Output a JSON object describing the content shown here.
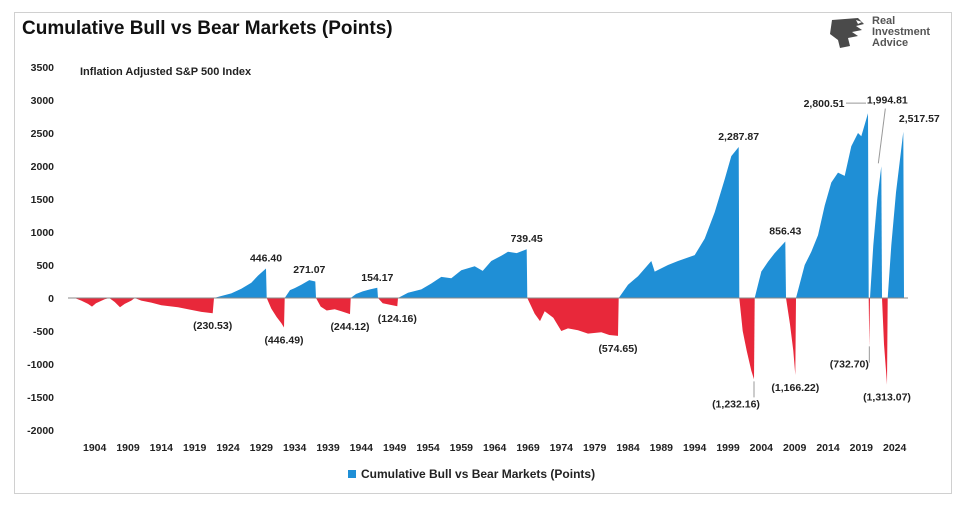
{
  "logo": {
    "line1": "Real",
    "line2": "Investment",
    "line3": "Advice",
    "icon": "eagle-head-icon"
  },
  "colors": {
    "positive": "#1f8fd6",
    "negative": "#e8283a",
    "axis": "#888888"
  },
  "chart_data": {
    "type": "area",
    "title": "Cumulative Bull vs Bear Markets (Points)",
    "subtitle": "Inflation Adjusted S&P 500 Index",
    "xlabel": "",
    "ylabel": "",
    "xlim": [
      1900,
      2026
    ],
    "ylim": [
      -2000,
      3500
    ],
    "yticks": [
      3500,
      3000,
      2500,
      2000,
      1500,
      1000,
      500,
      0,
      -500,
      -1000,
      -1500,
      -2000
    ],
    "ytick_labels": [
      "3500",
      "3000",
      "2500",
      "2000",
      "1500",
      "1000",
      "500",
      "0",
      "-500",
      "-1000",
      "-1500",
      "-2000"
    ],
    "xticks": [
      1904,
      1909,
      1914,
      1919,
      1924,
      1929,
      1934,
      1939,
      1944,
      1949,
      1954,
      1959,
      1964,
      1969,
      1974,
      1979,
      1984,
      1989,
      1994,
      1999,
      2004,
      2009,
      2014,
      2019,
      2024
    ],
    "legend": {
      "position": "bottom",
      "label": "Cumulative Bull vs Bear Markets (Points)"
    },
    "grid": false,
    "segments": [
      {
        "kind": "bear",
        "points": [
          [
            1901.0,
            0
          ],
          [
            1902.0,
            -40
          ],
          [
            1903.0,
            -90
          ],
          [
            1903.6,
            -130
          ],
          [
            1904.2,
            -80
          ],
          [
            1905.5,
            -20
          ],
          [
            1906.2,
            0
          ]
        ]
      },
      {
        "kind": "bear",
        "points": [
          [
            1906.2,
            0
          ],
          [
            1907.0,
            -60
          ],
          [
            1907.8,
            -140
          ],
          [
            1908.5,
            -90
          ],
          [
            1909.5,
            -40
          ],
          [
            1910.0,
            0
          ]
        ]
      },
      {
        "kind": "bear",
        "points": [
          [
            1910.0,
            0
          ],
          [
            1911.0,
            -40
          ],
          [
            1912.5,
            -70
          ],
          [
            1914.0,
            -110
          ],
          [
            1916.5,
            -140
          ],
          [
            1918.0,
            -170
          ],
          [
            1920.0,
            -210
          ],
          [
            1921.7,
            -230.53
          ],
          [
            1921.9,
            0
          ]
        ]
      },
      {
        "kind": "bull",
        "points": [
          [
            1921.9,
            0
          ],
          [
            1923.0,
            30
          ],
          [
            1924.5,
            70
          ],
          [
            1926.0,
            140
          ],
          [
            1927.5,
            230
          ],
          [
            1928.5,
            340
          ],
          [
            1929.7,
            446.4
          ],
          [
            1929.8,
            0
          ]
        ]
      },
      {
        "kind": "bear",
        "points": [
          [
            1929.8,
            0
          ],
          [
            1930.5,
            -160
          ],
          [
            1931.3,
            -290
          ],
          [
            1932.0,
            -380
          ],
          [
            1932.4,
            -446.49
          ],
          [
            1932.5,
            0
          ]
        ]
      },
      {
        "kind": "bull",
        "points": [
          [
            1932.5,
            0
          ],
          [
            1933.3,
            120
          ],
          [
            1934.0,
            150
          ],
          [
            1935.0,
            200
          ],
          [
            1936.2,
            271.07
          ],
          [
            1937.1,
            250
          ],
          [
            1937.2,
            0
          ]
        ]
      },
      {
        "kind": "bear",
        "points": [
          [
            1937.2,
            0
          ],
          [
            1937.9,
            -130
          ],
          [
            1938.8,
            -190
          ],
          [
            1940.0,
            -170
          ],
          [
            1941.0,
            -200
          ],
          [
            1942.3,
            -244.12
          ],
          [
            1942.4,
            0
          ]
        ]
      },
      {
        "kind": "bull",
        "points": [
          [
            1942.4,
            0
          ],
          [
            1943.2,
            60
          ],
          [
            1944.2,
            100
          ],
          [
            1945.3,
            130
          ],
          [
            1946.4,
            154.17
          ],
          [
            1946.5,
            0
          ]
        ]
      },
      {
        "kind": "bear",
        "points": [
          [
            1946.5,
            0
          ],
          [
            1947.2,
            -80
          ],
          [
            1948.2,
            -100
          ],
          [
            1949.4,
            -124.16
          ],
          [
            1949.5,
            0
          ]
        ]
      },
      {
        "kind": "bull",
        "points": [
          [
            1949.5,
            0
          ],
          [
            1951.0,
            80
          ],
          [
            1953.0,
            130
          ],
          [
            1954.5,
            220
          ],
          [
            1956.0,
            320
          ],
          [
            1957.5,
            300
          ],
          [
            1959.0,
            420
          ],
          [
            1961.0,
            480
          ],
          [
            1962.2,
            410
          ],
          [
            1963.5,
            560
          ],
          [
            1965.0,
            640
          ],
          [
            1966.0,
            700
          ],
          [
            1967.3,
            680
          ],
          [
            1968.8,
            739.45
          ],
          [
            1968.9,
            0
          ]
        ]
      },
      {
        "kind": "bear",
        "points": [
          [
            1968.9,
            0
          ],
          [
            1970.0,
            -240
          ],
          [
            1970.8,
            -350
          ],
          [
            1971.5,
            -200
          ],
          [
            1972.8,
            -300
          ],
          [
            1974.0,
            -500
          ],
          [
            1975.0,
            -460
          ],
          [
            1976.5,
            -490
          ],
          [
            1978.0,
            -540
          ],
          [
            1980.0,
            -520
          ],
          [
            1981.2,
            -560
          ],
          [
            1982.5,
            -574.65
          ],
          [
            1982.6,
            0
          ]
        ]
      },
      {
        "kind": "bull",
        "points": [
          [
            1982.6,
            0
          ],
          [
            1984.0,
            200
          ],
          [
            1985.5,
            330
          ],
          [
            1987.5,
            560
          ],
          [
            1988.0,
            400
          ],
          [
            1990.0,
            500
          ],
          [
            1991.5,
            560
          ],
          [
            1994.0,
            650
          ],
          [
            1995.5,
            900
          ],
          [
            1997.0,
            1300
          ],
          [
            1998.5,
            1800
          ],
          [
            1999.5,
            2150
          ],
          [
            2000.6,
            2287.87
          ],
          [
            2000.7,
            0
          ]
        ]
      },
      {
        "kind": "bear",
        "points": [
          [
            2000.7,
            0
          ],
          [
            2001.2,
            -500
          ],
          [
            2001.8,
            -800
          ],
          [
            2002.5,
            -1100
          ],
          [
            2002.9,
            -1232.16
          ],
          [
            2003.0,
            0
          ]
        ]
      },
      {
        "kind": "bull",
        "points": [
          [
            2003.0,
            0
          ],
          [
            2004.0,
            400
          ],
          [
            2005.0,
            550
          ],
          [
            2006.0,
            680
          ],
          [
            2007.6,
            856.43
          ],
          [
            2007.7,
            0
          ]
        ]
      },
      {
        "kind": "bear",
        "points": [
          [
            2007.7,
            0
          ],
          [
            2008.3,
            -400
          ],
          [
            2008.8,
            -800
          ],
          [
            2009.1,
            -1166.22
          ],
          [
            2009.2,
            0
          ]
        ]
      },
      {
        "kind": "bull",
        "points": [
          [
            2009.2,
            0
          ],
          [
            2010.5,
            500
          ],
          [
            2011.5,
            700
          ],
          [
            2012.5,
            950
          ],
          [
            2013.5,
            1400
          ],
          [
            2014.5,
            1750
          ],
          [
            2015.5,
            1900
          ],
          [
            2016.5,
            1850
          ],
          [
            2017.5,
            2300
          ],
          [
            2018.5,
            2500
          ],
          [
            2019.0,
            2450
          ],
          [
            2020.0,
            2800.51
          ],
          [
            2020.1,
            0
          ]
        ]
      },
      {
        "kind": "bear",
        "points": [
          [
            2020.1,
            0
          ],
          [
            2020.2,
            -732.7
          ],
          [
            2020.3,
            0
          ]
        ]
      },
      {
        "kind": "bull",
        "points": [
          [
            2020.3,
            0
          ],
          [
            2020.8,
            800
          ],
          [
            2021.4,
            1500
          ],
          [
            2022.0,
            1994.81
          ],
          [
            2022.1,
            0
          ]
        ]
      },
      {
        "kind": "bear",
        "points": [
          [
            2022.1,
            0
          ],
          [
            2022.4,
            -700
          ],
          [
            2022.7,
            -1100
          ],
          [
            2022.85,
            -1313.07
          ],
          [
            2022.95,
            0
          ]
        ]
      },
      {
        "kind": "bull",
        "points": [
          [
            2022.95,
            0
          ],
          [
            2023.5,
            800
          ],
          [
            2024.2,
            1600
          ],
          [
            2024.8,
            2100
          ],
          [
            2025.3,
            2517.57
          ],
          [
            2025.4,
            0
          ]
        ]
      }
    ],
    "annotations": [
      {
        "label": "446.40",
        "x": 1929.7,
        "y": 446.4,
        "pos": "above"
      },
      {
        "label": "(446.49)",
        "x": 1932.4,
        "y": -446.49,
        "pos": "below"
      },
      {
        "label": "271.07",
        "x": 1936.2,
        "y": 271.07,
        "pos": "above"
      },
      {
        "label": "(244.12)",
        "x": 1942.3,
        "y": -244.12,
        "pos": "below"
      },
      {
        "label": "154.17",
        "x": 1946.4,
        "y": 154.17,
        "pos": "above"
      },
      {
        "label": "(124.16)",
        "x": 1949.4,
        "y": -124.16,
        "pos": "below"
      },
      {
        "label": "(230.53)",
        "x": 1921.7,
        "y": -230.53,
        "pos": "below"
      },
      {
        "label": "739.45",
        "x": 1968.8,
        "y": 739.45,
        "pos": "above"
      },
      {
        "label": "(574.65)",
        "x": 1982.5,
        "y": -574.65,
        "pos": "below"
      },
      {
        "label": "2,287.87",
        "x": 2000.6,
        "y": 2287.87,
        "pos": "above"
      },
      {
        "label": "(1,232.16)",
        "x": 2002.9,
        "y": -1232.16,
        "pos": "below-left"
      },
      {
        "label": "856.43",
        "x": 2007.6,
        "y": 856.43,
        "pos": "above"
      },
      {
        "label": "(1,166.22)",
        "x": 2009.1,
        "y": -1166.22,
        "pos": "below"
      },
      {
        "label": "2,800.51",
        "x": 2020.0,
        "y": 2800.51,
        "pos": "left"
      },
      {
        "label": "(732.70)",
        "x": 2020.2,
        "y": -732.7,
        "pos": "callout-left"
      },
      {
        "label": "1,994.81",
        "x": 2022.0,
        "y": 1994.81,
        "pos": "callout-up"
      },
      {
        "label": "(1,313.07)",
        "x": 2022.85,
        "y": -1313.07,
        "pos": "below"
      },
      {
        "label": "2,517.57",
        "x": 2025.3,
        "y": 2517.57,
        "pos": "above-right"
      }
    ]
  }
}
